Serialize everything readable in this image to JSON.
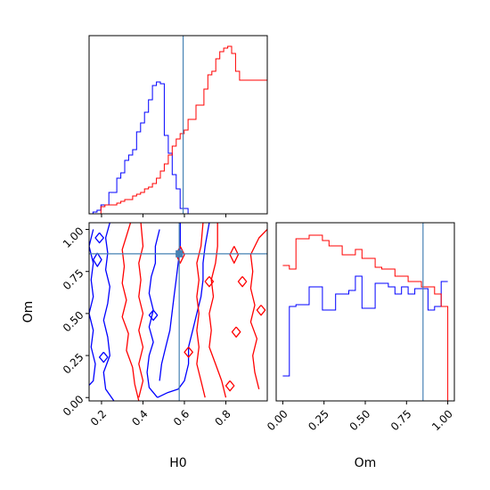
{
  "chart_data": [
    {
      "type": "histogram",
      "panel": "H0 marginal",
      "x": [
        0.1,
        0.12,
        0.14,
        0.16,
        0.18,
        0.2,
        0.22,
        0.24,
        0.26,
        0.28,
        0.3,
        0.32,
        0.34,
        0.36,
        0.38,
        0.4,
        0.42,
        0.44,
        0.46,
        0.48,
        0.5,
        0.52,
        0.54,
        0.56,
        0.58,
        0.6,
        0.62,
        0.64,
        0.66,
        0.68,
        0.7,
        0.72,
        0.74,
        0.76,
        0.78,
        0.8,
        0.82,
        0.84,
        0.86,
        0.88,
        0.9,
        0.92,
        0.94,
        0.96,
        0.98,
        1.0
      ],
      "series": [
        {
          "color": "#0000ff",
          "values": [
            0,
            0.01,
            0.02,
            0.05,
            0.05,
            0.12,
            0.12,
            0.2,
            0.23,
            0.3,
            0.33,
            0.36,
            0.46,
            0.51,
            0.57,
            0.64,
            0.72,
            0.74,
            0.73,
            0.44,
            0.34,
            0.22,
            0.14,
            0.03,
            0.03,
            0.0,
            0,
            0,
            0,
            0,
            0,
            0,
            0,
            0,
            0,
            0,
            0,
            0,
            0,
            0,
            0,
            0,
            0,
            0,
            0
          ]
        },
        {
          "color": "#ff0000",
          "values": [
            0,
            0,
            0,
            0.04,
            0.05,
            0.05,
            0.05,
            0.06,
            0.07,
            0.08,
            0.08,
            0.1,
            0.11,
            0.12,
            0.14,
            0.15,
            0.17,
            0.2,
            0.24,
            0.28,
            0.33,
            0.38,
            0.42,
            0.45,
            0.47,
            0.53,
            0.53,
            0.61,
            0.61,
            0.7,
            0.78,
            0.8,
            0.87,
            0.91,
            0.93,
            0.94,
            0.9,
            0.8,
            0.75,
            0.75,
            0.75,
            0.75,
            0.75,
            0.75,
            0.75
          ]
        }
      ],
      "truth": 0.575,
      "xlim": [
        0.1,
        1.0
      ]
    },
    {
      "type": "contour",
      "panel": "H0 vs Om",
      "xlabel": "H0",
      "ylabel": "Om",
      "xlim": [
        0.14,
        1.0
      ],
      "ylim": [
        -0.02,
        1.04
      ],
      "xticks": [
        "0.2",
        "0.4",
        "0.6",
        "0.8"
      ],
      "xtick_values": [
        0.2,
        0.4,
        0.6,
        0.8
      ],
      "yticks": [
        "0.00",
        "0.25",
        "0.50",
        "0.75",
        "1.00"
      ],
      "ytick_values": [
        0.0,
        0.25,
        0.5,
        0.75,
        1.0
      ],
      "truth": [
        0.575,
        0.855
      ],
      "series": [
        {
          "color": "#0000ff",
          "contours": [
            [
              [
                0.26,
                -0.02
              ],
              [
                0.22,
                0.05
              ],
              [
                0.21,
                0.15
              ],
              [
                0.24,
                0.25
              ],
              [
                0.23,
                0.36
              ],
              [
                0.21,
                0.46
              ],
              [
                0.23,
                0.56
              ],
              [
                0.24,
                0.66
              ],
              [
                0.22,
                0.76
              ],
              [
                0.23,
                0.86
              ],
              [
                0.22,
                0.95
              ],
              [
                0.24,
                1.04
              ]
            ],
            [
              [
                0.47,
                0.0
              ],
              [
                0.52,
                0.03
              ],
              [
                0.57,
                0.05
              ],
              [
                0.6,
                0.1
              ],
              [
                0.62,
                0.2
              ],
              [
                0.62,
                0.3
              ],
              [
                0.64,
                0.4
              ],
              [
                0.66,
                0.5
              ],
              [
                0.68,
                0.6
              ],
              [
                0.69,
                0.7
              ],
              [
                0.69,
                0.8
              ],
              [
                0.7,
                0.9
              ],
              [
                0.72,
                1.04
              ]
            ],
            [
              [
                0.47,
                0.0
              ],
              [
                0.43,
                0.06
              ],
              [
                0.42,
                0.15
              ],
              [
                0.43,
                0.25
              ],
              [
                0.45,
                0.33
              ],
              [
                0.43,
                0.42
              ],
              [
                0.45,
                0.52
              ],
              [
                0.43,
                0.62
              ],
              [
                0.44,
                0.72
              ],
              [
                0.46,
                0.8
              ],
              [
                0.46,
                0.9
              ],
              [
                0.48,
                1.0
              ]
            ],
            [
              [
                0.48,
                0.1
              ],
              [
                0.49,
                0.2
              ],
              [
                0.51,
                0.3
              ],
              [
                0.53,
                0.4
              ],
              [
                0.54,
                0.5
              ],
              [
                0.55,
                0.6
              ],
              [
                0.56,
                0.7
              ],
              [
                0.57,
                0.8
              ],
              [
                0.58,
                0.9
              ],
              [
                0.58,
                1.04
              ]
            ],
            [
              [
                0.1,
                0.02
              ],
              [
                0.16,
                0.1
              ],
              [
                0.17,
                0.2
              ],
              [
                0.15,
                0.3
              ],
              [
                0.16,
                0.4
              ],
              [
                0.14,
                0.5
              ],
              [
                0.16,
                0.6
              ],
              [
                0.15,
                0.7
              ],
              [
                0.16,
                0.8
              ],
              [
                0.14,
                0.9
              ],
              [
                0.16,
                1.0
              ]
            ],
            [
              [
                0.19,
                0.98
              ],
              [
                0.21,
                0.95
              ],
              [
                0.19,
                0.92
              ],
              [
                0.17,
                0.95
              ],
              [
                0.19,
                0.98
              ]
            ],
            [
              [
                0.18,
                0.86
              ],
              [
                0.2,
                0.82
              ],
              [
                0.18,
                0.78
              ],
              [
                0.16,
                0.82
              ],
              [
                0.18,
                0.86
              ]
            ],
            [
              [
                0.21,
                0.27
              ],
              [
                0.23,
                0.24
              ],
              [
                0.21,
                0.21
              ],
              [
                0.19,
                0.24
              ],
              [
                0.21,
                0.27
              ]
            ],
            [
              [
                0.45,
                0.52
              ],
              [
                0.47,
                0.49
              ],
              [
                0.45,
                0.46
              ],
              [
                0.43,
                0.49
              ],
              [
                0.45,
                0.52
              ]
            ]
          ]
        },
        {
          "color": "#ff0000",
          "contours": [
            [
              [
                0.38,
                -0.02
              ],
              [
                0.36,
                0.08
              ],
              [
                0.35,
                0.18
              ],
              [
                0.32,
                0.28
              ],
              [
                0.33,
                0.38
              ],
              [
                0.3,
                0.48
              ],
              [
                0.32,
                0.58
              ],
              [
                0.3,
                0.68
              ],
              [
                0.31,
                0.78
              ],
              [
                0.3,
                0.88
              ],
              [
                0.32,
                0.96
              ],
              [
                0.34,
                1.04
              ]
            ],
            [
              [
                0.38,
                0.0
              ],
              [
                0.4,
                0.1
              ],
              [
                0.38,
                0.2
              ],
              [
                0.4,
                0.3
              ],
              [
                0.38,
                0.4
              ],
              [
                0.4,
                0.5
              ],
              [
                0.38,
                0.6
              ],
              [
                0.39,
                0.7
              ],
              [
                0.38,
                0.8
              ],
              [
                0.4,
                0.9
              ],
              [
                0.39,
                1.04
              ]
            ],
            [
              [
                0.8,
                0.0
              ],
              [
                0.78,
                0.1
              ],
              [
                0.75,
                0.2
              ],
              [
                0.72,
                0.3
              ],
              [
                0.73,
                0.4
              ],
              [
                0.72,
                0.5
              ],
              [
                0.74,
                0.6
              ],
              [
                0.73,
                0.7
              ],
              [
                0.75,
                0.8
              ],
              [
                0.76,
                0.9
              ],
              [
                0.76,
                1.04
              ]
            ],
            [
              [
                0.96,
                0.05
              ],
              [
                0.94,
                0.15
              ],
              [
                0.93,
                0.25
              ],
              [
                0.95,
                0.35
              ],
              [
                0.92,
                0.45
              ],
              [
                0.94,
                0.55
              ],
              [
                0.92,
                0.65
              ],
              [
                0.93,
                0.75
              ],
              [
                0.92,
                0.85
              ],
              [
                0.96,
                0.95
              ],
              [
                1.0,
                1.0
              ]
            ],
            [
              [
                0.7,
                0.0
              ],
              [
                0.68,
                0.1
              ],
              [
                0.66,
                0.2
              ],
              [
                0.67,
                0.3
              ],
              [
                0.66,
                0.4
              ],
              [
                0.67,
                0.5
              ],
              [
                0.66,
                0.6
              ],
              [
                0.67,
                0.7
              ],
              [
                0.66,
                0.8
              ],
              [
                0.68,
                0.9
              ],
              [
                0.69,
                1.04
              ]
            ],
            [
              [
                0.58,
                0.9
              ],
              [
                0.6,
                0.85
              ],
              [
                0.58,
                0.8
              ],
              [
                0.56,
                0.85
              ],
              [
                0.58,
                0.9
              ]
            ],
            [
              [
                0.84,
                0.9
              ],
              [
                0.86,
                0.85
              ],
              [
                0.84,
                0.8
              ],
              [
                0.82,
                0.85
              ],
              [
                0.84,
                0.9
              ]
            ],
            [
              [
                0.85,
                0.42
              ],
              [
                0.87,
                0.39
              ],
              [
                0.85,
                0.36
              ],
              [
                0.83,
                0.39
              ],
              [
                0.85,
                0.42
              ]
            ],
            [
              [
                0.97,
                0.55
              ],
              [
                0.99,
                0.52
              ],
              [
                0.97,
                0.49
              ],
              [
                0.95,
                0.52
              ],
              [
                0.97,
                0.55
              ]
            ],
            [
              [
                0.62,
                0.3
              ],
              [
                0.64,
                0.27
              ],
              [
                0.62,
                0.24
              ],
              [
                0.6,
                0.27
              ],
              [
                0.62,
                0.3
              ]
            ],
            [
              [
                0.82,
                0.1
              ],
              [
                0.84,
                0.07
              ],
              [
                0.82,
                0.04
              ],
              [
                0.8,
                0.07
              ],
              [
                0.82,
                0.1
              ]
            ],
            [
              [
                0.72,
                0.72
              ],
              [
                0.74,
                0.69
              ],
              [
                0.72,
                0.66
              ],
              [
                0.7,
                0.69
              ],
              [
                0.72,
                0.72
              ]
            ],
            [
              [
                0.88,
                0.72
              ],
              [
                0.9,
                0.69
              ],
              [
                0.88,
                0.66
              ],
              [
                0.86,
                0.69
              ],
              [
                0.88,
                0.72
              ]
            ]
          ]
        }
      ]
    },
    {
      "type": "histogram",
      "panel": "Om marginal",
      "xlabel": "Om",
      "xlim": [
        -0.04,
        1.04
      ],
      "xticks": [
        "0.00",
        "0.25",
        "0.50",
        "0.75",
        "1.00"
      ],
      "xtick_values": [
        0.0,
        0.25,
        0.5,
        0.75,
        1.0
      ],
      "x": [
        0.0,
        0.04,
        0.08,
        0.12,
        0.16,
        0.2,
        0.24,
        0.28,
        0.32,
        0.36,
        0.4,
        0.44,
        0.48,
        0.52,
        0.56,
        0.6,
        0.64,
        0.68,
        0.72,
        0.76,
        0.8,
        0.84,
        0.88,
        0.92,
        0.96,
        1.0
      ],
      "series": [
        {
          "color": "#0000ff",
          "values": [
            0.14,
            0.53,
            0.54,
            0.54,
            0.64,
            0.64,
            0.51,
            0.51,
            0.6,
            0.6,
            0.62,
            0.7,
            0.52,
            0.52,
            0.66,
            0.66,
            0.64,
            0.6,
            0.64,
            0.6,
            0.63,
            0.63,
            0.51,
            0.53,
            0.67,
            0.67
          ]
        },
        {
          "color": "#ff0000",
          "values": [
            0.76,
            0.74,
            0.91,
            0.91,
            0.93,
            0.93,
            0.9,
            0.87,
            0.87,
            0.82,
            0.82,
            0.85,
            0.8,
            0.8,
            0.75,
            0.74,
            0.74,
            0.7,
            0.7,
            0.67,
            0.67,
            0.64,
            0.64,
            0.6,
            0.53,
            0.0
          ]
        }
      ],
      "truth": 0.85
    }
  ]
}
